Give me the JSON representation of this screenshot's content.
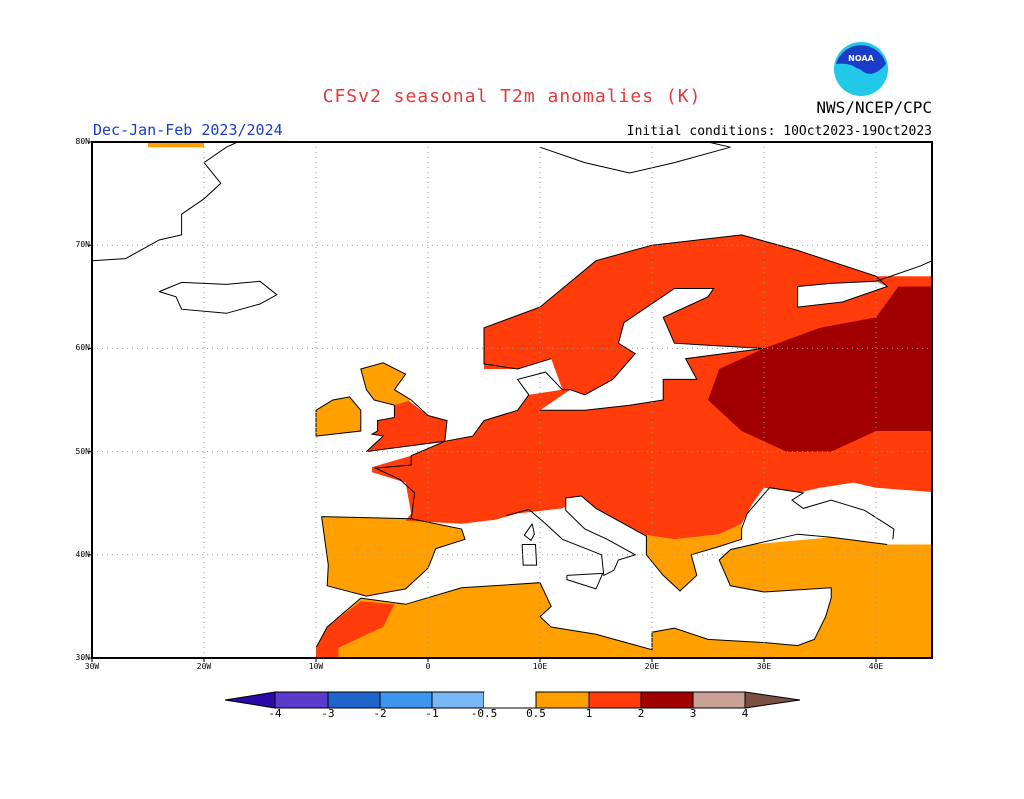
{
  "header": {
    "title": "CFSv2 seasonal T2m anomalies (K)",
    "agency": "NWS/NCEP/CPC",
    "season": "Dec-Jan-Feb 2023/2024",
    "initial_conditions": "Initial conditions: 10Oct2023-19Oct2023",
    "logo_text": "NOAA"
  },
  "map": {
    "projection": "lat-lon",
    "lon_range": [
      -30,
      45
    ],
    "lat_range": [
      30,
      80
    ],
    "lat_labels": [
      "30N",
      "40N",
      "50N",
      "60N",
      "70N",
      "80N"
    ],
    "lon_labels": [
      "30W",
      "20W",
      "10W",
      "0",
      "10E",
      "20E",
      "30E",
      "40E"
    ],
    "grid": "dotted",
    "regions": [
      {
        "region": "Russia west / Belarus / Baltic states",
        "category": "2 to 3"
      },
      {
        "region": "Central & Eastern Europe, Scandinavia, France",
        "category": "1 to 2"
      },
      {
        "region": "Iberia, North Africa, Turkey, southern Balkans, British Isles north",
        "category": "0.5 to 1"
      },
      {
        "region": "Mediterranean, Italy south, Atlantic",
        "category": "-0.5 to 0.5"
      }
    ]
  },
  "colorbar": {
    "labels": [
      "-4",
      "-3",
      "-2",
      "-1",
      "-0.5",
      "0.5",
      "1",
      "2",
      "3",
      "4"
    ],
    "colors": [
      "#2a0aa8",
      "#5a3ccc",
      "#1e64cc",
      "#3c96ee",
      "#78b8f4",
      "#ffffff",
      "#ffa000",
      "#ff3c0a",
      "#a00000",
      "#c8a096",
      "#7a5044"
    ]
  }
}
